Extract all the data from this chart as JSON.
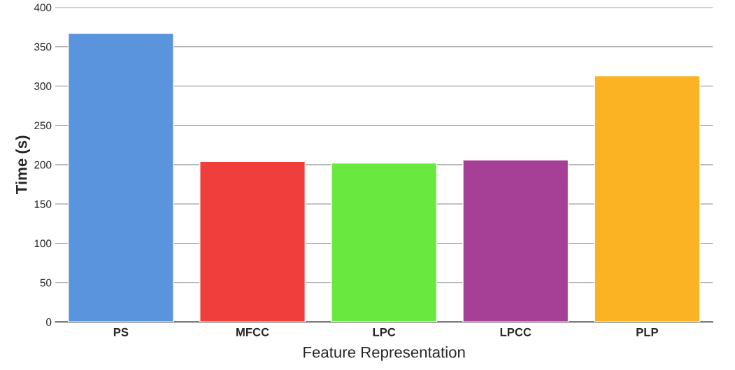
{
  "chart_data": {
    "type": "bar",
    "xlabel": "Feature Representation",
    "ylabel": "Time (s)",
    "categories": [
      "PS",
      "MFCC",
      "LPC",
      "LPCC",
      "PLP"
    ],
    "values": [
      367,
      204,
      202,
      206,
      313
    ],
    "colors": [
      "#5a94dc",
      "#ef3e3c",
      "#69e840",
      "#a63f96",
      "#fbb324"
    ],
    "ylim": [
      0,
      400
    ],
    "yticks": [
      0,
      50,
      100,
      150,
      200,
      250,
      300,
      350,
      400
    ],
    "grid": "y"
  }
}
